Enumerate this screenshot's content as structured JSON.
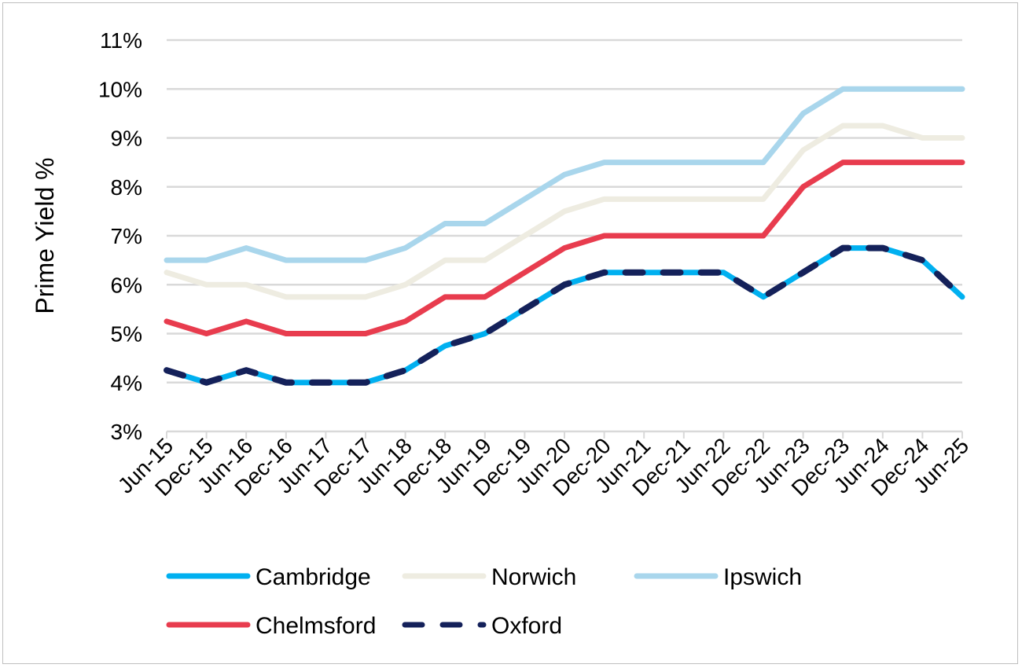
{
  "chart_data": {
    "type": "line",
    "title": "",
    "xlabel": "",
    "ylabel": "Prime Yield %",
    "ylim": [
      3,
      11
    ],
    "yticks": [
      "3%",
      "4%",
      "5%",
      "6%",
      "7%",
      "8%",
      "9%",
      "10%",
      "11%"
    ],
    "grid": true,
    "legend_placement": "bottom",
    "categories": [
      "Jun-15",
      "Dec-15",
      "Jun-16",
      "Dec-16",
      "Jun-17",
      "Dec-17",
      "Jun-18",
      "Dec-18",
      "Jun-19",
      "Dec-19",
      "Jun-20",
      "Dec-20",
      "Jun-21",
      "Dec-21",
      "Jun-22",
      "Dec-22",
      "Jun-23",
      "Dec-23",
      "Jun-24",
      "Dec-24",
      "Jun-25"
    ],
    "series": [
      {
        "name": "Cambridge",
        "color": "#00B0F0",
        "dash": false,
        "values": [
          4.25,
          4,
          4.25,
          4,
          4,
          4,
          4.25,
          4.75,
          5,
          5.5,
          6,
          6.25,
          6.25,
          6.25,
          6.25,
          5.75,
          6.25,
          6.75,
          6.75,
          6.5,
          5.75
        ]
      },
      {
        "name": "Norwich",
        "color": "#EEECE1",
        "dash": false,
        "values": [
          6.25,
          6,
          6,
          5.75,
          5.75,
          5.75,
          6,
          6.5,
          6.5,
          7,
          7.5,
          7.75,
          7.75,
          7.75,
          7.75,
          7.75,
          8.75,
          9.25,
          9.25,
          9,
          9
        ]
      },
      {
        "name": "Ipswich",
        "color": "#A9D6EC",
        "dash": false,
        "values": [
          6.5,
          6.5,
          6.75,
          6.5,
          6.5,
          6.5,
          6.75,
          7.25,
          7.25,
          7.75,
          8.25,
          8.5,
          8.5,
          8.5,
          8.5,
          8.5,
          9.5,
          10,
          10,
          10,
          10
        ]
      },
      {
        "name": "Chelmsford",
        "color": "#E83C4E",
        "dash": false,
        "values": [
          5.25,
          5,
          5.25,
          5,
          5,
          5,
          5.25,
          5.75,
          5.75,
          6.25,
          6.75,
          7,
          7,
          7,
          7,
          7,
          8,
          8.5,
          8.5,
          8.5,
          8.5
        ]
      },
      {
        "name": "Oxford",
        "color": "#14215A",
        "dash": true,
        "values": [
          4.25,
          4,
          4.25,
          4,
          4,
          4,
          4.25,
          4.75,
          5,
          5.5,
          6,
          6.25,
          6.25,
          6.25,
          6.25,
          5.75,
          6.25,
          6.75,
          6.75,
          6.5,
          5.75
        ]
      }
    ]
  }
}
